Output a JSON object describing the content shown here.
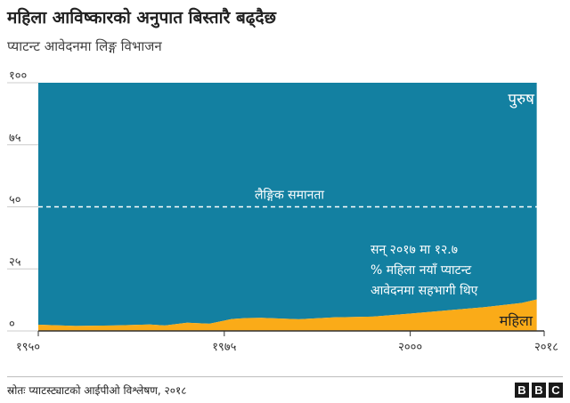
{
  "title": "महिला आविष्कारको अनुपात बिस्तारै बढ्दैछ",
  "subtitle": "प्याटन्ट आवेदनमा लिङ्ग विभाजन",
  "source": "स्रोतः प्याटस्ट्याटको आईपीओ विश्लेषण, २०१८",
  "logo": {
    "letters": [
      "B",
      "B",
      "C"
    ]
  },
  "colors": {
    "male": "#1380A1",
    "female": "#FAAB18",
    "axis": "#333333",
    "reference": "#ffffff"
  },
  "chart_data": {
    "type": "area",
    "stacked": true,
    "x": [
      1950,
      1955,
      1960,
      1965,
      1967,
      1970,
      1973,
      1976,
      1978,
      1980,
      1985,
      1990,
      1995,
      2000,
      2005,
      2010,
      2015,
      2017
    ],
    "series": [
      {
        "name": "महिला",
        "values": [
          2.5,
          2.0,
          2.2,
          2.6,
          2.2,
          3.3,
          2.9,
          4.8,
          5.2,
          5.3,
          4.7,
          5.5,
          5.8,
          7.0,
          8.3,
          9.6,
          11.3,
          12.7
        ]
      },
      {
        "name": "पुरुष",
        "values": [
          97.5,
          98.0,
          97.8,
          97.4,
          97.8,
          96.7,
          97.1,
          95.2,
          94.8,
          94.7,
          95.3,
          94.5,
          94.2,
          93.0,
          91.7,
          90.4,
          88.7,
          87.3
        ]
      }
    ],
    "xlim": [
      1950,
      2018
    ],
    "ylim": [
      0,
      100
    ],
    "yticks": [
      0,
      25,
      50,
      75,
      100
    ],
    "ytick_labels": [
      "०",
      "२५",
      "५०",
      "७५",
      "१००"
    ],
    "xticks": [
      1950,
      1975,
      2000,
      2018
    ],
    "xtick_labels": [
      "१९५०",
      "१९७५",
      "२०००",
      "२०१८"
    ],
    "reference_line": {
      "value": 50,
      "label": "लैङ्गिक समानता"
    },
    "annotation_lines": [
      "सन् २०१७ मा १२.७",
      "% महिला नयाँ प्याटन्ट",
      "आवेदनमा सहभागी थिए"
    ]
  }
}
